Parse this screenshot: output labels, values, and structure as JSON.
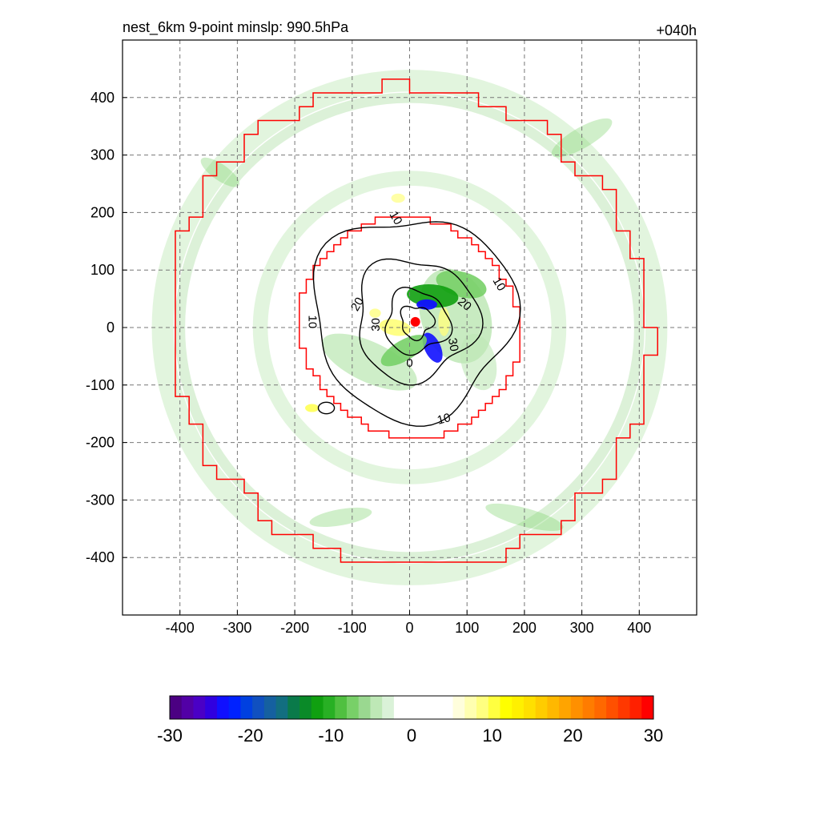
{
  "chart_data": {
    "type": "contour",
    "title_left": "nest_6km  9-point minslp: 990.5hPa",
    "title_right": "+040h",
    "xlim": [
      -500,
      500
    ],
    "ylim": [
      -500,
      500
    ],
    "x_ticks": [
      -400,
      -300,
      -200,
      -100,
      0,
      100,
      200,
      300,
      400
    ],
    "y_ticks": [
      400,
      300,
      200,
      100,
      0,
      -100,
      -200,
      -300,
      -400
    ],
    "grid": true,
    "grid_style": "dashed",
    "center_marker": {
      "x": 10,
      "y": 10,
      "color": "#ff0000"
    },
    "nest_boundaries": {
      "color": "#ff0000",
      "outer_radius": 420,
      "inner_radius": 190
    },
    "contour_lines": {
      "color": "#000000",
      "levels": [
        10,
        20,
        30
      ],
      "labels": [
        {
          "text": "10",
          "x": -25,
          "y": 190,
          "angle": 60
        },
        {
          "text": "10",
          "x": 155,
          "y": 75,
          "angle": 60
        },
        {
          "text": "10",
          "x": -170,
          "y": 10,
          "angle": 90
        },
        {
          "text": "10",
          "x": 60,
          "y": -160,
          "angle": -15
        },
        {
          "text": "20",
          "x": -90,
          "y": 40,
          "angle": -60
        },
        {
          "text": "20",
          "x": 95,
          "y": 40,
          "angle": 40
        },
        {
          "text": "30",
          "x": -58,
          "y": 5,
          "angle": -90
        },
        {
          "text": "30",
          "x": 75,
          "y": -30,
          "angle": 80
        },
        {
          "text": "0",
          "x": 0,
          "y": -63,
          "angle": 0
        }
      ]
    },
    "colorbar": {
      "min": -30,
      "max": 30,
      "tick_labels": [
        "-30",
        "-20",
        "-10",
        "0",
        "10",
        "20",
        "30"
      ],
      "colors": [
        "#4b0082",
        "#5200a6",
        "#4a00c6",
        "#3000e0",
        "#1010ff",
        "#0022ff",
        "#0040e0",
        "#1050c0",
        "#1560a0",
        "#126e80",
        "#0a7a4a",
        "#0a8a28",
        "#10a010",
        "#28b024",
        "#50c040",
        "#78d068",
        "#9ad890",
        "#bee8b6",
        "#daf2d8",
        "#ffffff",
        "#ffffff",
        "#ffffff",
        "#ffffff",
        "#ffffff",
        "#fffedc",
        "#ffffb0",
        "#ffff80",
        "#ffff40",
        "#ffff00",
        "#fff000",
        "#ffe000",
        "#ffcc00",
        "#ffb800",
        "#ffa400",
        "#ff9000",
        "#ff7c00",
        "#ff6800",
        "#ff5000",
        "#ff3800",
        "#ff2000",
        "#ff0000"
      ]
    }
  }
}
